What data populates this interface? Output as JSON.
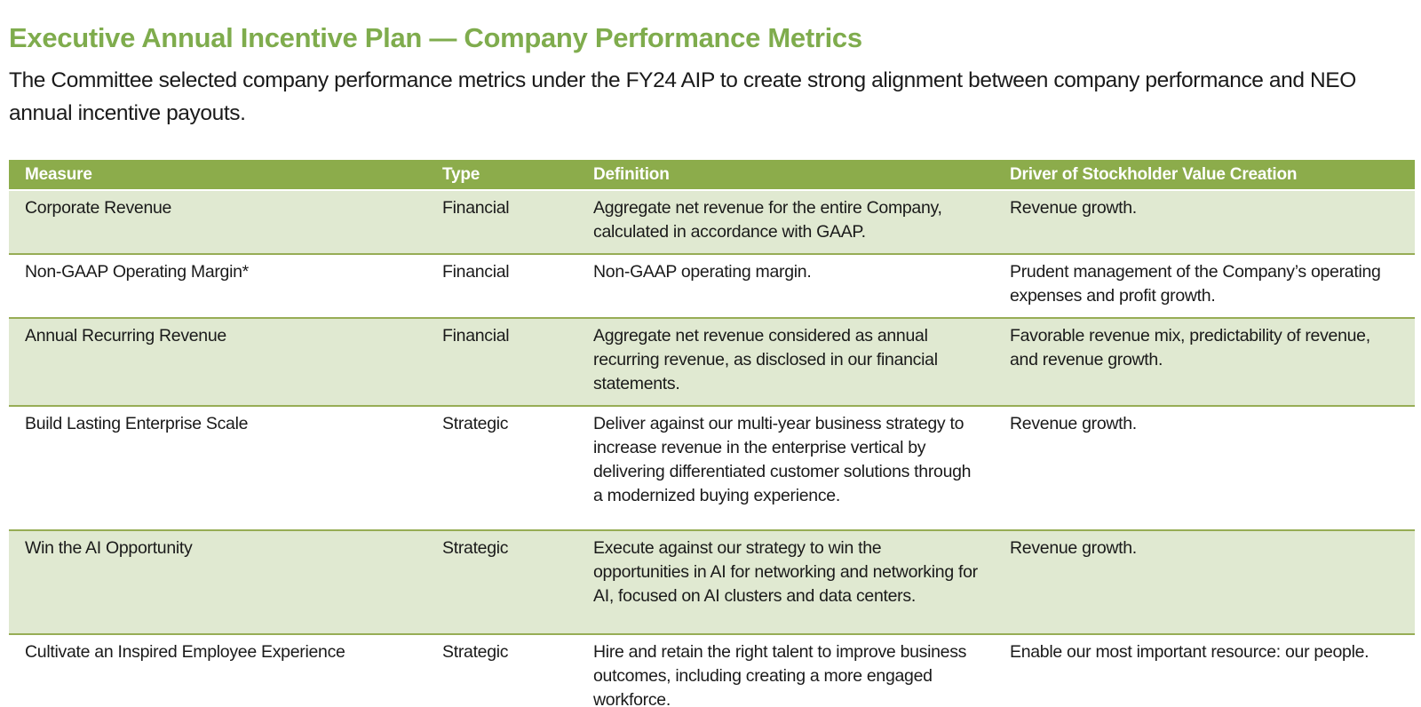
{
  "page": {
    "title": "Executive Annual Incentive Plan — Company Performance Metrics",
    "intro": "The Committee selected company performance metrics under the FY24 AIP to create strong alignment between company performance and NEO annual incentive payouts."
  },
  "colors": {
    "title_green": "#7FAC4D",
    "header_bg": "#8CAC4B",
    "row_shaded_bg": "#E0E9D1",
    "row_divider": "#97AD55",
    "header_text": "#FFFFFF",
    "body_text": "#1A1A1A"
  },
  "table": {
    "columns": [
      "Measure",
      "Type",
      "Definition",
      "Driver of Stockholder Value Creation"
    ],
    "rows": [
      {
        "measure": "Corporate Revenue",
        "type": "Financial",
        "definition": "Aggregate net revenue for the entire Company, calculated in accordance with GAAP.",
        "driver": "Revenue growth.",
        "shaded": true
      },
      {
        "measure": "Non-GAAP Operating Margin*",
        "type": "Financial",
        "definition": "Non-GAAP operating margin.",
        "driver": "Prudent management of the Company’s operating expenses and profit growth.",
        "shaded": false
      },
      {
        "measure": "Annual Recurring Revenue",
        "type": "Financial",
        "definition": "Aggregate net revenue considered as annual recurring revenue, as disclosed in our financial statements.",
        "driver": "Favorable revenue mix, predictability of revenue, and revenue growth.",
        "shaded": true
      },
      {
        "measure": "Build Lasting Enterprise Scale",
        "type": "Strategic",
        "definition": "Deliver against our multi-year business strategy to increase revenue in the enterprise vertical by delivering differentiated customer solutions through a modernized buying experience.",
        "driver": "Revenue growth.",
        "shaded": false
      },
      {
        "measure": "Win the AI Opportunity",
        "type": "Strategic",
        "definition": "Execute against our strategy to win the opportunities in AI for networking and networking for AI, focused on AI clusters and data centers.",
        "driver": "Revenue growth.",
        "shaded": true
      },
      {
        "measure": "Cultivate an Inspired Employee Experience",
        "type": "Strategic",
        "definition": "Hire and retain the right talent to improve business outcomes, including creating a more engaged workforce.",
        "driver": "Enable our most important resource: our people.",
        "shaded": false
      }
    ]
  }
}
